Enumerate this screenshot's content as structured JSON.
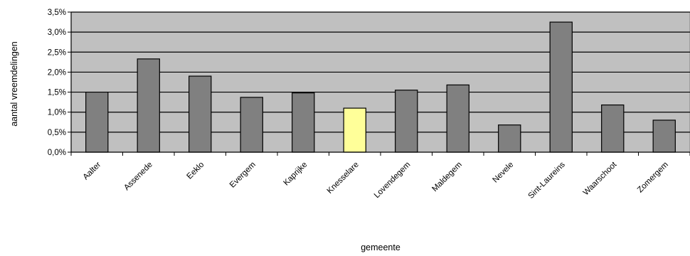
{
  "chart_data": {
    "type": "bar",
    "title": "",
    "xlabel": "gemeente",
    "ylabel": "aantal vreemdelingen",
    "ylim": [
      0,
      3.5
    ],
    "yticks": [
      "0,0%",
      "0,5%",
      "1,0%",
      "1,5%",
      "2,0%",
      "2,5%",
      "3,0%",
      "3,5%"
    ],
    "grid": true,
    "legend": "none",
    "categories": [
      "Aalter",
      "Assenede",
      "Eeklo",
      "Evergem",
      "Kaprijke",
      "Knesselare",
      "Lovendegem",
      "Maldegem",
      "Nevele",
      "Sint-Laureins",
      "Waarschoot",
      "Zomergem"
    ],
    "values": [
      1.5,
      2.33,
      1.9,
      1.37,
      1.48,
      1.1,
      1.55,
      1.68,
      0.68,
      3.25,
      1.18,
      0.8
    ],
    "colors": {
      "bar": "#808080",
      "highlight": "#ffff99",
      "highlight_index": 5,
      "plot_background": "#c0c0c0",
      "grid": "#000000"
    }
  }
}
